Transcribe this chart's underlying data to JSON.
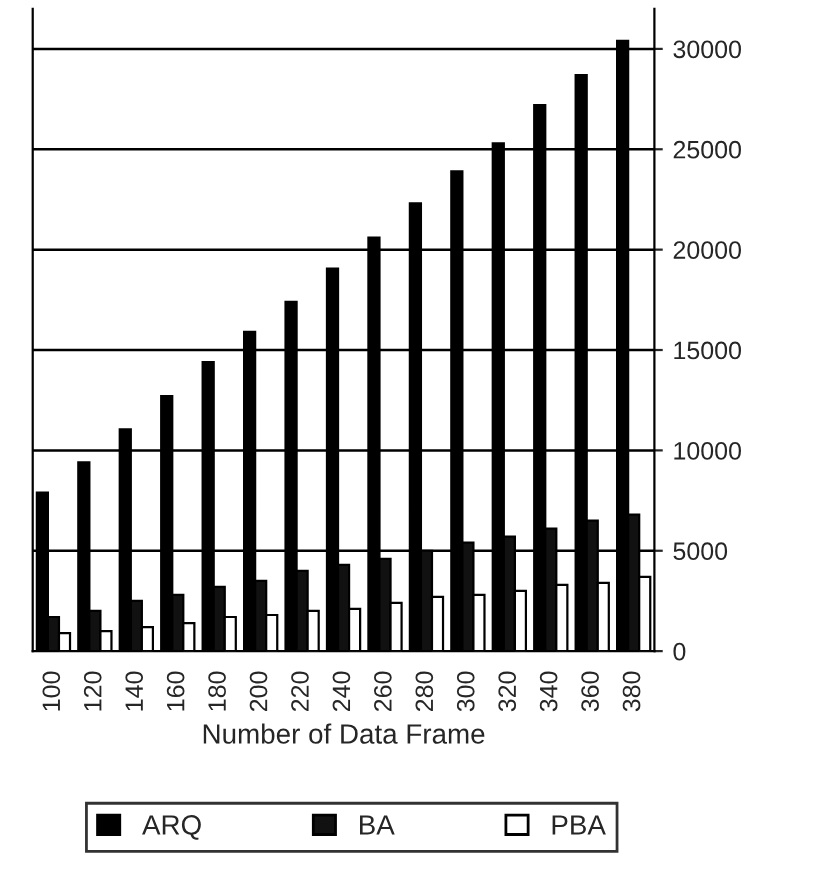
{
  "chart_data": {
    "type": "bar",
    "xlabel": "Number of Data Frame",
    "categories": [
      "100",
      "120",
      "140",
      "160",
      "180",
      "200",
      "220",
      "240",
      "260",
      "280",
      "300",
      "320",
      "340",
      "360",
      "380"
    ],
    "series": [
      {
        "name": "ARQ",
        "color": "#000000",
        "values": [
          7900,
          9400,
          11050,
          12700,
          14400,
          15900,
          17400,
          19050,
          20600,
          22300,
          23900,
          25300,
          27200,
          28700,
          30400
        ]
      },
      {
        "name": "BA",
        "color": "#111111",
        "values": [
          1700,
          2000,
          2500,
          2800,
          3200,
          3500,
          4000,
          4300,
          4600,
          5000,
          5400,
          5700,
          6100,
          6500,
          6800
        ]
      },
      {
        "name": "PBA",
        "color": "#ffffff",
        "values": [
          900,
          1000,
          1200,
          1400,
          1700,
          1800,
          2000,
          2100,
          2400,
          2700,
          2800,
          3000,
          3300,
          3400,
          3700
        ]
      }
    ],
    "ylim": [
      0,
      32000
    ],
    "yticks": [
      0,
      5000,
      10000,
      15000,
      20000,
      25000,
      30000
    ],
    "grid": "y",
    "legend": "bottom"
  }
}
